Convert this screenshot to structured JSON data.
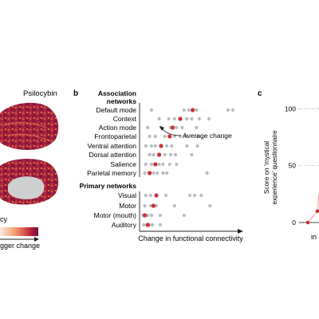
{
  "panel_a": {
    "title": "Psilocybin",
    "legend_text_left": "cy",
    "legend_text_bottom": "gger change",
    "colors": {
      "gradient": [
        "#fbeae4",
        "#f4a67a",
        "#e0604e",
        "#b41e3c",
        "#6e1033"
      ],
      "medial_wall": "#cfcfcf"
    }
  },
  "panel_b": {
    "letter": "b",
    "xlabel": "Change in functional connectivity",
    "annotation": "Average change",
    "colors": {
      "avg": "#c8323a",
      "subject": "#b7bdc4"
    },
    "groups": [
      {
        "header_line1": "Association",
        "header_line2": "networks",
        "rows": [
          {
            "label": "Default mode",
            "avg": 0.53,
            "subjects": [
              0.1,
              0.44,
              0.49,
              0.57,
              0.9,
              0.95
            ]
          },
          {
            "label": "Context",
            "avg": 0.4,
            "subjects": [
              0.18,
              0.28,
              0.34,
              0.47,
              0.52,
              0.6,
              0.7
            ]
          },
          {
            "label": "Action mode",
            "avg": 0.32,
            "subjects": [
              0.06,
              0.2,
              0.3,
              0.36,
              0.42,
              0.57
            ]
          },
          {
            "label": "Frontoparietal",
            "avg": 0.29,
            "subjects": [
              0.08,
              0.14,
              0.24,
              0.34,
              0.4,
              0.46,
              0.58
            ]
          },
          {
            "label": "Ventral attention",
            "avg": 0.2,
            "subjects": [
              0.04,
              0.1,
              0.14,
              0.26,
              0.31,
              0.47,
              0.58
            ]
          },
          {
            "label": "Dorsal attention",
            "avg": 0.18,
            "subjects": [
              0.08,
              0.12,
              0.24,
              0.3,
              0.35,
              0.52
            ]
          },
          {
            "label": "Salience",
            "avg": 0.14,
            "subjects": [
              0.04,
              0.1,
              0.18,
              0.22,
              0.29,
              0.36
            ]
          },
          {
            "label": "Parietal memory",
            "avg": 0.08,
            "subjects": [
              0.03,
              0.12,
              0.16,
              0.22,
              0.26,
              0.68
            ]
          }
        ]
      },
      {
        "header_line1": "Primary networks",
        "header_line2": "",
        "rows": [
          {
            "label": "Visual",
            "avg": 0.15,
            "subjects": [
              0.04,
              0.09,
              0.25,
              0.5,
              0.55,
              0.62
            ]
          },
          {
            "label": "Motor",
            "avg": 0.12,
            "subjects": [
              0.03,
              0.09,
              0.15,
              0.34,
              0.71
            ]
          },
          {
            "label": "Motor (mouth)",
            "avg": 0.03,
            "subjects": [
              0.01,
              0.06,
              0.1,
              0.19,
              0.44
            ]
          },
          {
            "label": "Auditory",
            "avg": 0.06,
            "subjects": [
              0.02,
              0.08,
              0.11,
              0.19
            ]
          }
        ]
      }
    ]
  },
  "panel_c": {
    "letter": "c",
    "ylabel_line1": "Score on 'mystical",
    "ylabel_line2": "experience' questionnaire",
    "yticks": [
      0,
      50,
      100
    ],
    "ylim": [
      0,
      115
    ],
    "xlabel_fragment": "in",
    "points": [
      {
        "x": 0.0,
        "y": 0,
        "color": "#c8323a"
      },
      {
        "x": 0.4,
        "y": 10,
        "color": "#c8323a"
      }
    ],
    "line_color": "#f1a8a8"
  }
}
